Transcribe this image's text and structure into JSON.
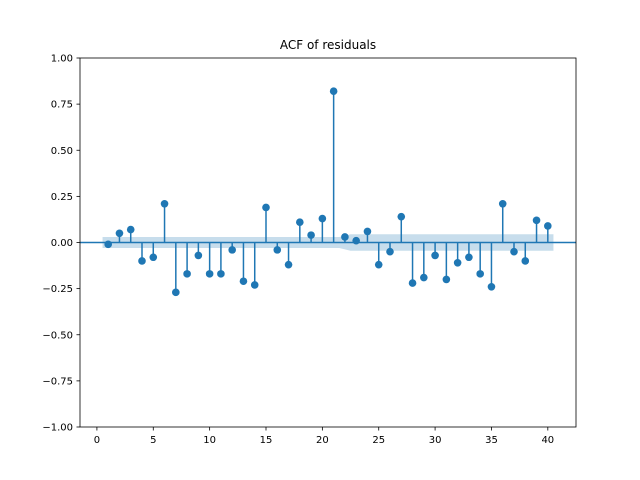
{
  "chart_data": {
    "type": "stem",
    "title": "ACF of residuals",
    "xlabel": "",
    "ylabel": "",
    "xlim": [
      -1.5,
      42.5
    ],
    "ylim": [
      -1.0,
      1.0
    ],
    "xticks": [
      0,
      5,
      10,
      15,
      20,
      25,
      30,
      35,
      40
    ],
    "yticks": [
      -1.0,
      -0.75,
      -0.5,
      -0.25,
      0.0,
      0.25,
      0.5,
      0.75,
      1.0
    ],
    "ytick_labels": [
      "−1.00",
      "−0.75",
      "−0.50",
      "−0.25",
      "0.00",
      "0.25",
      "0.50",
      "0.75",
      "1.00"
    ],
    "grid": false,
    "series": [
      {
        "lags": [
          1,
          2,
          3,
          4,
          5,
          6,
          7,
          8,
          9,
          10,
          11,
          12,
          13,
          14,
          15,
          16,
          17,
          18,
          19,
          20,
          21,
          22,
          23,
          24,
          25,
          26,
          27,
          28,
          29,
          30,
          31,
          32,
          33,
          34,
          35,
          36,
          37,
          38,
          39,
          40
        ],
        "values": [
          -0.01,
          0.05,
          0.07,
          -0.1,
          -0.08,
          0.21,
          -0.27,
          -0.17,
          -0.07,
          -0.17,
          -0.17,
          -0.04,
          -0.21,
          -0.23,
          0.19,
          -0.04,
          -0.12,
          0.11,
          0.04,
          0.13,
          0.82,
          0.03,
          0.01,
          0.06,
          -0.12,
          -0.05,
          0.14,
          -0.22,
          -0.19,
          -0.07,
          -0.2,
          -0.11,
          -0.08,
          -0.17,
          -0.24,
          0.21,
          -0.05,
          -0.1,
          0.12,
          0.09
        ]
      }
    ],
    "confidence_band": {
      "x": [
        0.5,
        21.5,
        22.5,
        40.5
      ],
      "upper": [
        0.03,
        0.03,
        0.045,
        0.045
      ],
      "lower": [
        -0.03,
        -0.03,
        -0.045,
        -0.045
      ]
    },
    "colors": {
      "stem": "#1f77b4",
      "band": "#1f77b4",
      "axis": "#000000"
    }
  }
}
